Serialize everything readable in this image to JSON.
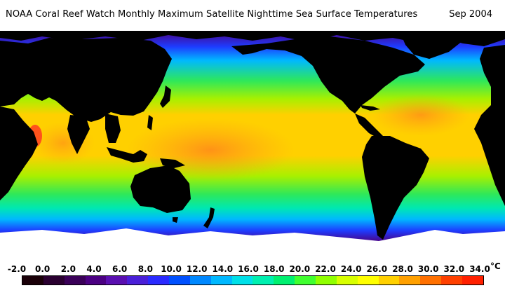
{
  "header": {
    "title": "NOAA Coral Reef Watch Monthly Maximum Satellite Nighttime Sea Surface Temperatures",
    "date": "Sep 2004"
  },
  "legend": {
    "unit": "°C",
    "ticks": [
      "-2.0",
      "0.0",
      "2.0",
      "4.0",
      "6.0",
      "8.0",
      "10.0",
      "12.0",
      "14.0",
      "16.0",
      "18.0",
      "20.0",
      "22.0",
      "24.0",
      "26.0",
      "28.0",
      "30.0",
      "32.0",
      "34.0"
    ],
    "colors": [
      "#1a0008",
      "#2a0030",
      "#3a0058",
      "#4b0082",
      "#5a0fb0",
      "#4a1fd8",
      "#2a2aff",
      "#0050ff",
      "#0088ff",
      "#00b8ff",
      "#00e0e8",
      "#00f0b0",
      "#00f070",
      "#40ff30",
      "#90ff00",
      "#d8ff00",
      "#ffff00",
      "#ffd000",
      "#ffa000",
      "#ff7000",
      "#ff4000",
      "#ff2000"
    ]
  },
  "map": {
    "colors": {
      "land": "#000000",
      "ice": "#ffffff",
      "polar": "#4b0082",
      "cold": "#1e3cff",
      "cool": "#00b8ff",
      "mild": "#00e8b0",
      "temperate": "#2ee85a",
      "warm": "#a8f000",
      "subtropical": "#ffd000",
      "tropical": "#ff9a1a",
      "hot": "#ff7820",
      "hottest": "#ff3c20"
    }
  }
}
